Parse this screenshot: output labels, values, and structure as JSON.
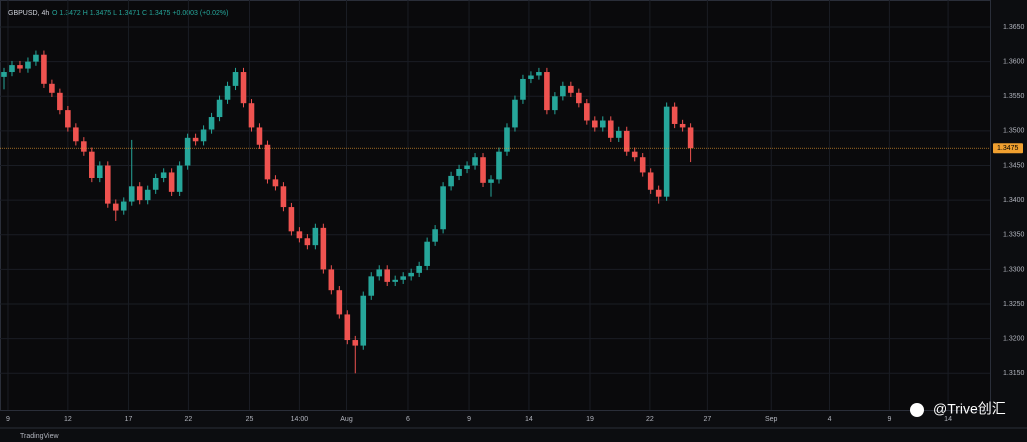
{
  "chart_data": {
    "type": "candlestick",
    "symbol": "GBPUSD, 4h",
    "ohlc_text": "O 1.3472  H 1.3475  L 1.3471  C 1.3475  +0.0003 (+0.02%)",
    "footer": "TradingView",
    "watermark": "@Trive创汇",
    "up_color": "#26a69a",
    "down_color": "#ef5350",
    "last_price_color": "#f0a030",
    "grid": true,
    "xlim": [
      0,
      124
    ],
    "xticks": [
      {
        "value": 1,
        "label": "9"
      },
      {
        "value": 8.5,
        "label": "12"
      },
      {
        "value": 16.1,
        "label": "17"
      },
      {
        "value": 23.6,
        "label": "22"
      },
      {
        "value": 31.25,
        "label": "25"
      },
      {
        "value": 37.5,
        "label": "14:00"
      },
      {
        "value": 43.4,
        "label": "Aug"
      },
      {
        "value": 51.1,
        "label": "6"
      },
      {
        "value": 58.75,
        "label": "9"
      },
      {
        "value": 66.25,
        "label": "14"
      },
      {
        "value": 73.9,
        "label": "19"
      },
      {
        "value": 81.4,
        "label": "22"
      },
      {
        "value": 88.6,
        "label": "27"
      },
      {
        "value": 96.6,
        "label": "Sep"
      },
      {
        "value": 103.9,
        "label": "4"
      },
      {
        "value": 111.4,
        "label": "9"
      },
      {
        "value": 118.75,
        "label": "14"
      }
    ],
    "ylim": [
      1.3097,
      1.3689
    ],
    "yticks": [
      {
        "value": 1.365,
        "label": "1.3650"
      },
      {
        "value": 1.36,
        "label": "1.3600"
      },
      {
        "value": 1.355,
        "label": "1.3550"
      },
      {
        "value": 1.35,
        "label": "1.3500"
      },
      {
        "value": 1.345,
        "label": "1.3450"
      },
      {
        "value": 1.34,
        "label": "1.3400"
      },
      {
        "value": 1.335,
        "label": "1.3350"
      },
      {
        "value": 1.33,
        "label": "1.3300"
      },
      {
        "value": 1.325,
        "label": "1.3250"
      },
      {
        "value": 1.32,
        "label": "1.3200"
      },
      {
        "value": 1.315,
        "label": "1.3150"
      }
    ],
    "open": [
      1.3578,
      1.3585,
      1.3595,
      1.359,
      1.36,
      1.361,
      1.3568,
      1.3555,
      1.353,
      1.3505,
      1.3485,
      1.347,
      1.3432,
      1.345,
      1.3395,
      1.3385,
      1.3398,
      1.342,
      1.34,
      1.3415,
      1.3432,
      1.344,
      1.3412,
      1.345,
      1.349,
      1.3485,
      1.3502,
      1.352,
      1.3545,
      1.3565,
      1.3585,
      1.354,
      1.3505,
      1.348,
      1.343,
      1.342,
      1.339,
      1.3355,
      1.3345,
      1.3335,
      1.336,
      1.33,
      1.327,
      1.3235,
      1.3198,
      1.319,
      1.3262,
      1.329,
      1.33,
      1.3282,
      1.3285,
      1.329,
      1.3295,
      1.3305,
      1.334,
      1.3358,
      1.342,
      1.3435,
      1.3445,
      1.345,
      1.3462,
      1.3425,
      1.343,
      1.347,
      1.3505,
      1.3545,
      1.3575,
      1.358,
      1.3585,
      1.353,
      1.355,
      1.3565,
      1.3555,
      1.354,
      1.3515,
      1.3505,
      1.3515,
      1.349,
      1.35,
      1.347,
      1.3462,
      1.344,
      1.3415,
      1.3405,
      1.3535,
      1.351,
      1.3505
    ],
    "high": [
      1.3591,
      1.3601,
      1.3601,
      1.3606,
      1.3616,
      1.3616,
      1.3574,
      1.3561,
      1.3536,
      1.3511,
      1.3491,
      1.3476,
      1.3456,
      1.3456,
      1.3401,
      1.3404,
      1.3487,
      1.3426,
      1.3421,
      1.3438,
      1.3446,
      1.3446,
      1.3456,
      1.3496,
      1.3496,
      1.3508,
      1.3526,
      1.3551,
      1.3571,
      1.3591,
      1.3591,
      1.3546,
      1.3511,
      1.3486,
      1.3436,
      1.3426,
      1.3396,
      1.3361,
      1.3351,
      1.3366,
      1.3366,
      1.3306,
      1.3276,
      1.3241,
      1.3204,
      1.3268,
      1.3296,
      1.3306,
      1.3306,
      1.3291,
      1.3296,
      1.3301,
      1.3311,
      1.3346,
      1.3364,
      1.3426,
      1.3441,
      1.3451,
      1.3456,
      1.3468,
      1.3468,
      1.3436,
      1.3476,
      1.3511,
      1.3551,
      1.3581,
      1.3586,
      1.3591,
      1.3591,
      1.3556,
      1.3571,
      1.3571,
      1.3561,
      1.3546,
      1.3521,
      1.3521,
      1.3521,
      1.3506,
      1.3506,
      1.3476,
      1.3468,
      1.3446,
      1.3421,
      1.3541,
      1.3541,
      1.3516,
      1.3511
    ],
    "low": [
      1.356,
      1.3579,
      1.3584,
      1.3584,
      1.3594,
      1.3562,
      1.3549,
      1.3524,
      1.3499,
      1.3479,
      1.3464,
      1.3426,
      1.3426,
      1.3389,
      1.337,
      1.3379,
      1.3392,
      1.3394,
      1.3394,
      1.3409,
      1.3426,
      1.3406,
      1.3406,
      1.3444,
      1.3479,
      1.3479,
      1.3496,
      1.3514,
      1.3539,
      1.3559,
      1.3534,
      1.3499,
      1.3474,
      1.3424,
      1.3414,
      1.3384,
      1.3349,
      1.3339,
      1.3329,
      1.3329,
      1.3294,
      1.3264,
      1.3229,
      1.3192,
      1.315,
      1.3184,
      1.3256,
      1.3284,
      1.3276,
      1.3276,
      1.3279,
      1.3284,
      1.3289,
      1.3299,
      1.3334,
      1.3352,
      1.3414,
      1.3429,
      1.3439,
      1.3444,
      1.3419,
      1.3405,
      1.3424,
      1.3464,
      1.3499,
      1.3539,
      1.3569,
      1.3574,
      1.3524,
      1.3524,
      1.3544,
      1.3549,
      1.3534,
      1.3509,
      1.3499,
      1.3499,
      1.3484,
      1.3484,
      1.3464,
      1.3456,
      1.3434,
      1.3409,
      1.3395,
      1.3399,
      1.3504,
      1.3499,
      1.3455
    ],
    "close": [
      1.3585,
      1.3595,
      1.359,
      1.36,
      1.361,
      1.3568,
      1.3555,
      1.353,
      1.3505,
      1.3485,
      1.347,
      1.3432,
      1.345,
      1.3395,
      1.3385,
      1.3398,
      1.342,
      1.34,
      1.3415,
      1.3432,
      1.344,
      1.3412,
      1.345,
      1.349,
      1.3485,
      1.3502,
      1.352,
      1.3545,
      1.3565,
      1.3585,
      1.354,
      1.3505,
      1.348,
      1.343,
      1.342,
      1.339,
      1.3355,
      1.3345,
      1.3335,
      1.336,
      1.33,
      1.327,
      1.3235,
      1.3198,
      1.319,
      1.3262,
      1.329,
      1.33,
      1.3282,
      1.3285,
      1.329,
      1.3295,
      1.3305,
      1.334,
      1.3358,
      1.342,
      1.3435,
      1.3445,
      1.345,
      1.3462,
      1.3425,
      1.343,
      1.347,
      1.3505,
      1.3545,
      1.3575,
      1.358,
      1.3585,
      1.353,
      1.355,
      1.3565,
      1.3555,
      1.354,
      1.3515,
      1.3505,
      1.3515,
      1.349,
      1.35,
      1.347,
      1.3462,
      1.344,
      1.3415,
      1.3405,
      1.3535,
      1.351,
      1.3505,
      1.3475
    ]
  }
}
